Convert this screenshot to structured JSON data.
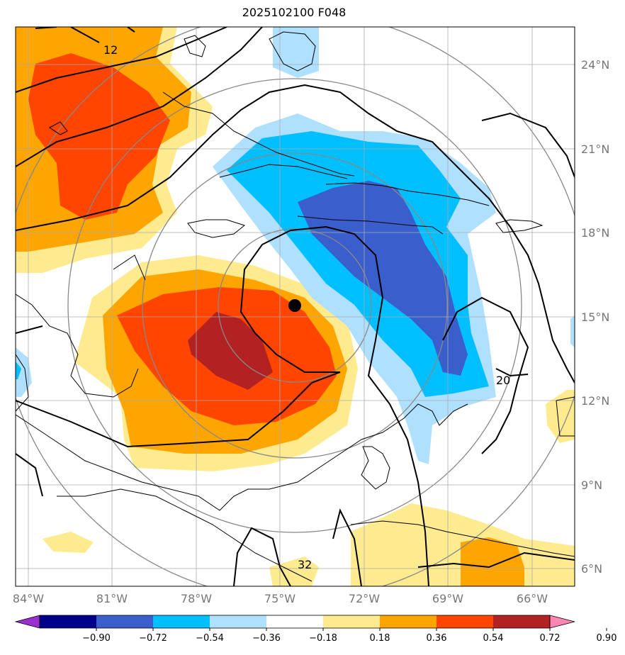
{
  "title": "2025102100 F048",
  "lat_ticks": [
    "24°N",
    "21°N",
    "18°N",
    "15°N",
    "12°N",
    "9°N",
    "6°N"
  ],
  "lon_ticks": [
    "84°W",
    "81°W",
    "78°W",
    "75°W",
    "72°W",
    "69°W",
    "66°W"
  ],
  "colorbar": {
    "labels": [
      "−0.90",
      "−0.72",
      "−0.54",
      "−0.36",
      "−0.18",
      "0.18",
      "0.36",
      "0.54",
      "0.72",
      "0.90"
    ],
    "colors": [
      "#9b30d0",
      "#00008b",
      "#3a5fcd",
      "#00bfff",
      "#b0e0ff",
      "#ffffff",
      "#ffeb8f",
      "#ffa500",
      "#ff4500",
      "#b22222",
      "#ff85b3"
    ]
  },
  "contour_labels": [
    "12",
    "20",
    "32"
  ],
  "storm_center": {
    "lon": -74.4,
    "lat": 15.3
  },
  "colors": {
    "contour": "#000000",
    "range_rings": "#888888",
    "grid": "#aaaaaa"
  }
}
